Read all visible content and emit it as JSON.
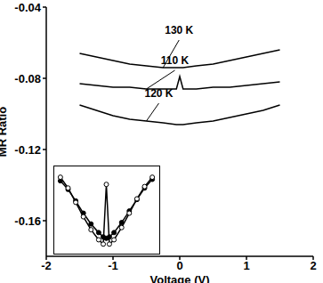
{
  "chart_data": [
    {
      "type": "line",
      "x_label": "Voltage (V)",
      "y_label": "MR Ratio",
      "x": [
        -1.5,
        -1.25,
        -1,
        -0.75,
        -0.5,
        -0.25,
        -0.05,
        0,
        0.05,
        0.25,
        0.5,
        0.75,
        1,
        1.25,
        1.5
      ],
      "series": [
        {
          "name": "130 K",
          "color": "#000000",
          "line_style": "solid",
          "marker": "none",
          "values": [
            -0.066,
            -0.068,
            -0.07,
            -0.072,
            -0.073,
            -0.074,
            -0.074,
            -0.074,
            -0.074,
            -0.073,
            -0.072,
            -0.07,
            -0.068,
            -0.066,
            -0.064
          ]
        },
        {
          "name": "110 K",
          "color": "#000000",
          "line_style": "solid",
          "marker": "none",
          "values": [
            -0.083,
            -0.084,
            -0.085,
            -0.085,
            -0.086,
            -0.086,
            -0.086,
            -0.079,
            -0.086,
            -0.086,
            -0.085,
            -0.085,
            -0.084,
            -0.083,
            -0.082
          ]
        },
        {
          "name": "120 K",
          "color": "#000000",
          "line_style": "solid",
          "marker": "none",
          "values": [
            -0.095,
            -0.098,
            -0.101,
            -0.103,
            -0.104,
            -0.105,
            -0.106,
            -0.106,
            -0.106,
            -0.105,
            -0.104,
            -0.102,
            -0.1,
            -0.098,
            -0.095
          ]
        }
      ],
      "xlim": [
        -2,
        2
      ],
      "xticks": [
        -2,
        -1,
        0,
        1,
        2
      ],
      "ylim": [
        -0.18,
        -0.04
      ],
      "yticks": [
        -0.16,
        -0.12,
        -0.08,
        -0.04
      ],
      "grid": false
    },
    {
      "type": "line",
      "x": [
        -1.5,
        -1.25,
        -1,
        -0.75,
        -0.5,
        -0.25,
        -0.1,
        0,
        0.1,
        0.25,
        0.5,
        0.75,
        1,
        1.25,
        1.5
      ],
      "series": [
        {
          "color": "#000000",
          "line_style": "solid",
          "marker": "filled_circle",
          "values": [
            0.9,
            0.78,
            0.62,
            0.45,
            0.3,
            0.18,
            0.12,
            0.1,
            0.12,
            0.18,
            0.32,
            0.48,
            0.64,
            0.8,
            0.92
          ]
        },
        {
          "color": "#000000",
          "line_style": "solid",
          "marker": "open_circle",
          "values": [
            0.95,
            0.8,
            0.6,
            0.4,
            0.22,
            0.08,
            0.02,
            0.85,
            0.02,
            0.08,
            0.25,
            0.45,
            0.65,
            0.82,
            0.95
          ]
        }
      ],
      "xlim": [
        -1.7,
        1.7
      ],
      "ylim": [
        -0.1,
        1.1
      ],
      "tick_labels": false,
      "grid": false
    }
  ]
}
